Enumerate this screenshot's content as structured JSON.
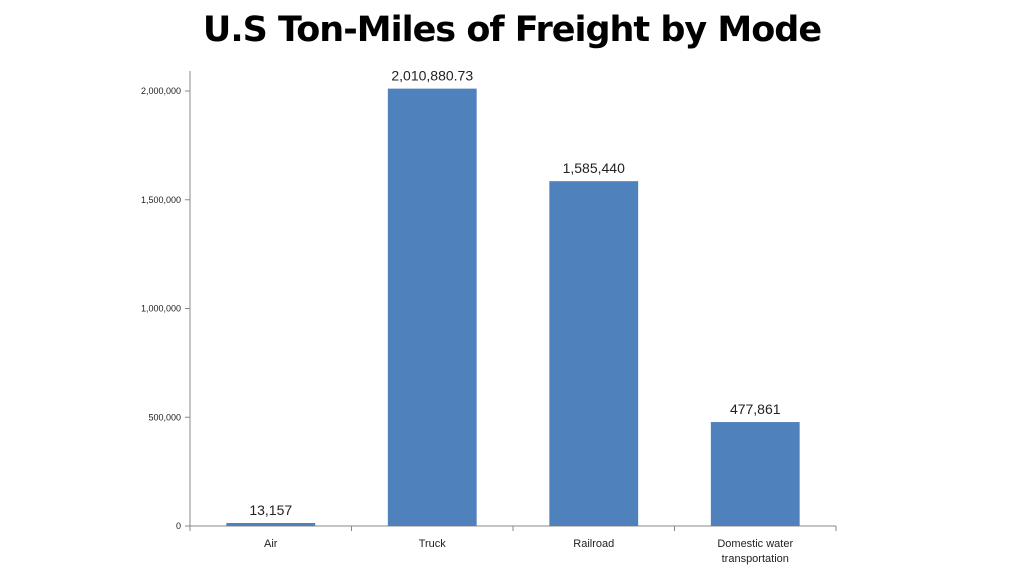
{
  "chart_data": {
    "type": "bar",
    "title": "U.S Ton-Miles of Freight by Mode",
    "categories": [
      "Air",
      "Truck",
      "Railroad",
      "Domestic water\ntransportation"
    ],
    "values": [
      13157,
      2010880.73,
      1585440,
      477861
    ],
    "data_labels": [
      "13,157",
      "2,010,880.73",
      "1,585,440",
      "477,861"
    ],
    "y_ticks": [
      0,
      500000,
      1000000,
      1500000,
      2000000
    ],
    "y_tick_labels": [
      "0",
      "500,000",
      "1,000,000",
      "1,500,000",
      "2,000,000"
    ],
    "ylim": [
      0,
      2000000
    ],
    "xlabel": "",
    "ylabel": "",
    "grid": false,
    "legend": "none",
    "bar_color": "#4F81BD"
  }
}
